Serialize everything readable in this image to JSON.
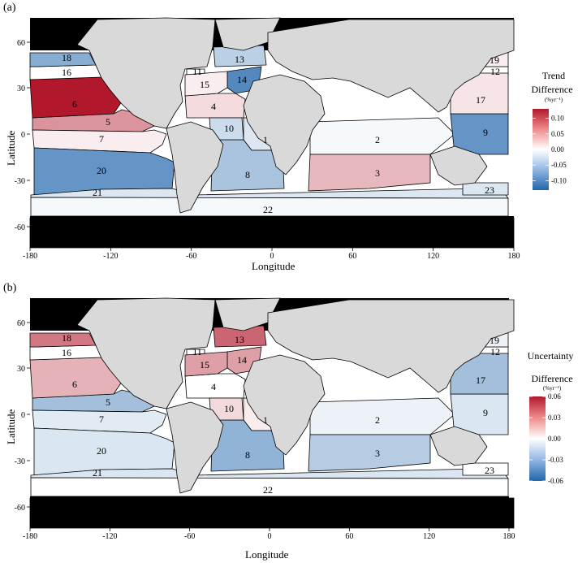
{
  "figure": {
    "panels": [
      {
        "id": "a",
        "label": "(a)",
        "xlabel": "Longitude",
        "ylabel": "Latitude",
        "x_ticks": [
          "-180",
          "-120",
          "-60",
          "0",
          "60",
          "120",
          "180"
        ],
        "y_ticks": [
          "60",
          "30",
          "0",
          "-30",
          "-60"
        ],
        "legend": {
          "title_line1": "Trend",
          "title_line2": "Difference",
          "unit": "(%yr⁻¹)",
          "ticks": [
            "0.10",
            "0.05",
            "0.00",
            "-0.05",
            "-0.10"
          ],
          "tick_values": [
            0.1,
            0.05,
            0.0,
            -0.05,
            -0.1
          ],
          "range": [
            -0.13,
            0.13
          ],
          "colors": {
            "high": "#b2182b",
            "mid": "#ffffff",
            "low": "#2166ac"
          }
        },
        "regions": [
          {
            "id": "1",
            "value": -0.02
          },
          {
            "id": "2",
            "value": -0.005
          },
          {
            "id": "3",
            "value": 0.04
          },
          {
            "id": "4",
            "value": 0.02
          },
          {
            "id": "5",
            "value": 0.06
          },
          {
            "id": "6",
            "value": 0.13
          },
          {
            "id": "7",
            "value": 0.01
          },
          {
            "id": "8",
            "value": -0.05
          },
          {
            "id": "9",
            "value": -0.09
          },
          {
            "id": "10",
            "value": -0.03
          },
          {
            "id": "11",
            "value": 0.0
          },
          {
            "id": "12",
            "value": 0.0
          },
          {
            "id": "13",
            "value": -0.04
          },
          {
            "id": "14",
            "value": -0.1
          },
          {
            "id": "15",
            "value": 0.01
          },
          {
            "id": "16",
            "value": 0.0
          },
          {
            "id": "17",
            "value": 0.015
          },
          {
            "id": "18",
            "value": -0.07
          },
          {
            "id": "19",
            "value": 0.01
          },
          {
            "id": "20",
            "value": -0.09
          },
          {
            "id": "21",
            "value": -0.02
          },
          {
            "id": "22",
            "value": -0.005
          },
          {
            "id": "23",
            "value": -0.02
          }
        ]
      },
      {
        "id": "b",
        "label": "(b)",
        "xlabel": "Longitude",
        "ylabel": "Latitude",
        "x_ticks": [
          "-180",
          "-120",
          "-60",
          "0",
          "60",
          "120",
          "180"
        ],
        "y_ticks": [
          "60",
          "30",
          "0",
          "-30",
          "-60"
        ],
        "legend": {
          "title_line1": "Uncertainty",
          "title_line2": "Difference",
          "unit": "(%yr⁻¹)",
          "ticks": [
            "0.06",
            "0.03",
            "0.00",
            "-0.03",
            "-0.06"
          ],
          "tick_values": [
            0.06,
            0.03,
            0.0,
            -0.03,
            -0.06
          ],
          "range": [
            -0.06,
            0.06
          ],
          "colors": {
            "high": "#b2182b",
            "mid": "#ffffff",
            "low": "#2166ac"
          }
        },
        "regions": [
          {
            "id": "1",
            "value": 0.005
          },
          {
            "id": "2",
            "value": -0.005
          },
          {
            "id": "3",
            "value": -0.02
          },
          {
            "id": "4",
            "value": 0.0
          },
          {
            "id": "5",
            "value": -0.025
          },
          {
            "id": "6",
            "value": 0.02
          },
          {
            "id": "7",
            "value": -0.008
          },
          {
            "id": "8",
            "value": -0.03
          },
          {
            "id": "9",
            "value": -0.01
          },
          {
            "id": "10",
            "value": 0.01
          },
          {
            "id": "11",
            "value": 0.0
          },
          {
            "id": "12",
            "value": 0.0
          },
          {
            "id": "13",
            "value": 0.04
          },
          {
            "id": "14",
            "value": 0.025
          },
          {
            "id": "15",
            "value": 0.025
          },
          {
            "id": "16",
            "value": 0.0
          },
          {
            "id": "17",
            "value": -0.025
          },
          {
            "id": "18",
            "value": 0.035
          },
          {
            "id": "19",
            "value": -0.005
          },
          {
            "id": "20",
            "value": -0.01
          },
          {
            "id": "21",
            "value": -0.01
          },
          {
            "id": "22",
            "value": 0.0
          },
          {
            "id": "23",
            "value": 0.0
          }
        ]
      }
    ]
  }
}
